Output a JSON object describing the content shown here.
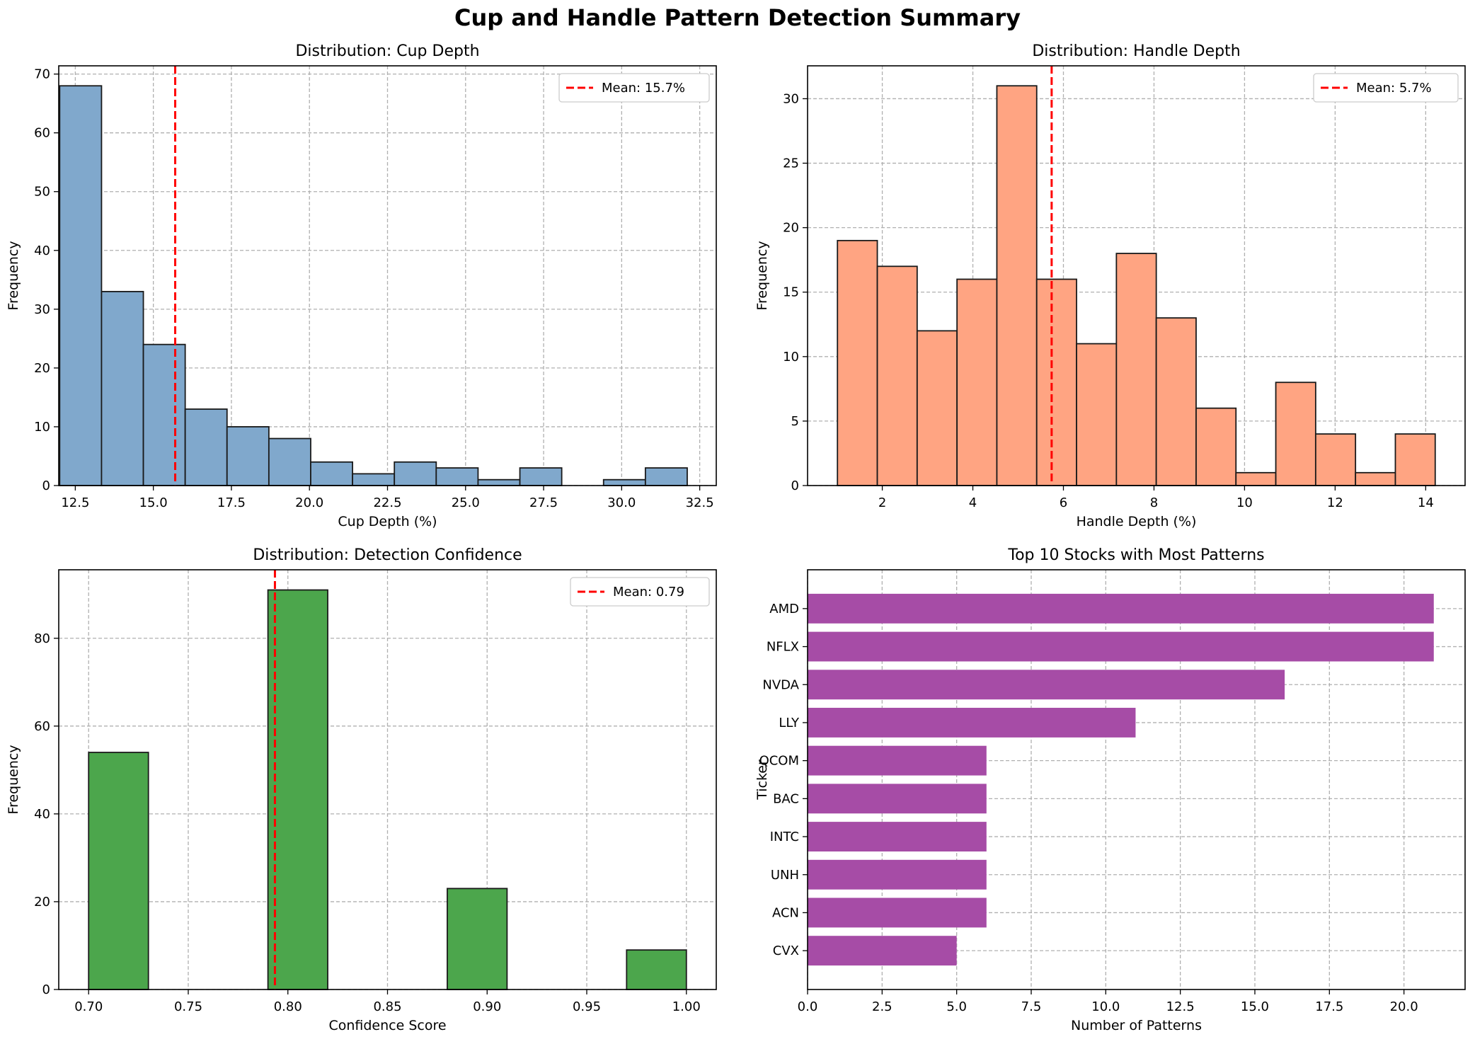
{
  "title": "Cup and Handle Pattern Detection Summary",
  "chart_data": [
    {
      "type": "bar",
      "title": "Distribution: Cup Depth",
      "xlabel": "Cup Depth (%)",
      "ylabel": "Frequency",
      "xlim": [
        11.97,
        33.03
      ],
      "ylim": [
        0,
        71.4
      ],
      "xticks": [
        "12.5",
        "15.0",
        "17.5",
        "20.0",
        "22.5",
        "25.0",
        "27.5",
        "30.0",
        "32.5"
      ],
      "xtick_values": [
        12.5,
        15.0,
        17.5,
        20.0,
        22.5,
        25.0,
        27.5,
        30.0,
        32.5
      ],
      "yticks": [
        "0",
        "10",
        "20",
        "30",
        "40",
        "50",
        "60",
        "70"
      ],
      "ytick_values": [
        0,
        10,
        20,
        30,
        40,
        50,
        60,
        70
      ],
      "bin_edges": [
        12.0,
        13.34,
        14.68,
        16.02,
        17.36,
        18.7,
        20.04,
        21.38,
        22.72,
        24.06,
        25.4,
        26.74,
        28.08,
        29.42,
        30.76,
        32.1
      ],
      "values": [
        68,
        33,
        24,
        13,
        10,
        8,
        4,
        2,
        4,
        3,
        1,
        3,
        0,
        1,
        3
      ],
      "mean": 15.7,
      "legend": "Mean: 15.7%",
      "grid": true,
      "legend_position": "upper right",
      "colors": {
        "bar": "#80a8cc",
        "edge": "#1a1a1a",
        "mean": "#ff0000"
      }
    },
    {
      "type": "bar",
      "title": "Distribution: Handle Depth",
      "xlabel": "Handle Depth (%)",
      "ylabel": "Frequency",
      "xlim": [
        0.35,
        14.87
      ],
      "ylim": [
        0,
        32.55
      ],
      "xticks": [
        "2",
        "4",
        "6",
        "8",
        "10",
        "12",
        "14"
      ],
      "xtick_values": [
        2,
        4,
        6,
        8,
        10,
        12,
        14
      ],
      "yticks": [
        "0",
        "5",
        "10",
        "15",
        "20",
        "25",
        "30"
      ],
      "ytick_values": [
        0,
        5,
        10,
        15,
        20,
        25,
        30
      ],
      "bin_edges": [
        1.01,
        1.89,
        2.77,
        3.65,
        4.53,
        5.41,
        6.29,
        7.17,
        8.05,
        8.93,
        9.81,
        10.69,
        11.57,
        12.45,
        13.33,
        14.21
      ],
      "values": [
        19,
        17,
        12,
        16,
        31,
        16,
        11,
        18,
        13,
        6,
        1,
        8,
        4,
        1,
        4
      ],
      "mean": 5.74,
      "legend": "Mean: 5.7%",
      "grid": true,
      "legend_position": "upper right",
      "colors": {
        "bar": "#ffa482",
        "edge": "#1a1a1a",
        "mean": "#ff0000"
      }
    },
    {
      "type": "bar",
      "title": "Distribution: Detection Confidence",
      "xlabel": "Confidence Score",
      "ylabel": "Frequency",
      "xlim": [
        0.685,
        1.015
      ],
      "ylim": [
        0,
        95.6
      ],
      "xticks": [
        "0.70",
        "0.75",
        "0.80",
        "0.85",
        "0.90",
        "0.95",
        "1.00"
      ],
      "xtick_values": [
        0.7,
        0.75,
        0.8,
        0.85,
        0.9,
        0.95,
        1.0
      ],
      "yticks": [
        "0",
        "20",
        "40",
        "60",
        "80"
      ],
      "ytick_values": [
        0,
        20,
        40,
        60,
        80
      ],
      "bin_edges": [
        0.7,
        0.73,
        0.76,
        0.79,
        0.82,
        0.85,
        0.88,
        0.91,
        0.94,
        0.97,
        1.0
      ],
      "values": [
        54,
        0,
        0,
        91,
        0,
        0,
        23,
        0,
        0,
        9
      ],
      "mean": 0.7935,
      "legend": "Mean: 0.79",
      "grid": true,
      "legend_position": "upper right",
      "colors": {
        "bar": "#4ca64c",
        "edge": "#1a1a1a",
        "mean": "#ff0000"
      }
    },
    {
      "type": "bar",
      "orientation": "horizontal",
      "title": "Top 10 Stocks with Most Patterns",
      "xlabel": "Number of Patterns",
      "ylabel": "Ticker",
      "xlim": [
        0,
        22.05
      ],
      "xticks": [
        "0.0",
        "2.5",
        "5.0",
        "7.5",
        "10.0",
        "12.5",
        "15.0",
        "17.5",
        "20.0"
      ],
      "xtick_values": [
        0,
        2.5,
        5,
        7.5,
        10,
        12.5,
        15,
        17.5,
        20
      ],
      "categories": [
        "AMD",
        "NFLX",
        "NVDA",
        "LLY",
        "QCOM",
        "BAC",
        "INTC",
        "UNH",
        "ACN",
        "CVX"
      ],
      "values": [
        21,
        21,
        16,
        11,
        6,
        6,
        6,
        6,
        6,
        5
      ],
      "grid": true,
      "colors": {
        "bar": "#a64ca6"
      }
    }
  ]
}
